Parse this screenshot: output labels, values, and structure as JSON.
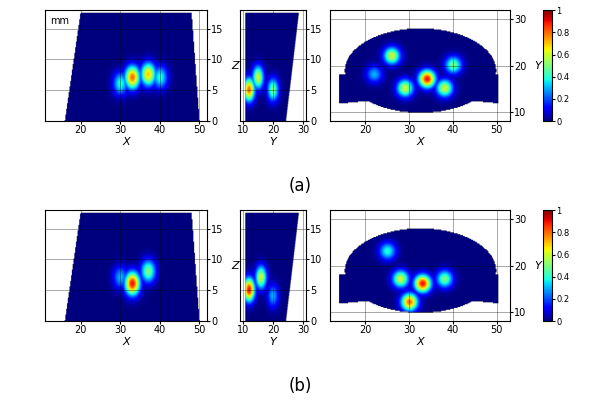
{
  "chart_data": [
    {
      "type": "heatmap",
      "panel_label": "(a)",
      "annotation": "mm",
      "xlabel": "X",
      "ylabel": "Z",
      "xlim": [
        11,
        52
      ],
      "ylim": [
        0,
        18
      ],
      "xticks": [
        20,
        30,
        40,
        50
      ],
      "yticks": [
        0,
        5,
        10,
        15
      ],
      "grid": true,
      "spots": [
        {
          "x": 30,
          "y": 6,
          "value": 0.4
        },
        {
          "x": 33,
          "y": 7,
          "value": 0.8
        },
        {
          "x": 37,
          "y": 7.5,
          "value": 0.7
        },
        {
          "x": 40,
          "y": 7,
          "value": 0.4
        }
      ]
    },
    {
      "type": "heatmap",
      "xlabel": "Y",
      "ylabel": "Z",
      "xlim": [
        9,
        31
      ],
      "ylim": [
        0,
        18
      ],
      "xticks": [
        10,
        20,
        30
      ],
      "yticks": [
        0,
        5,
        10,
        15
      ],
      "grid": true,
      "spots": [
        {
          "x": 12,
          "y": 5,
          "value": 0.8
        },
        {
          "x": 15,
          "y": 7,
          "value": 0.6
        },
        {
          "x": 20,
          "y": 5,
          "value": 0.5
        }
      ]
    },
    {
      "type": "heatmap",
      "xlabel": "X",
      "ylabel": "Y",
      "xlim": [
        12,
        53
      ],
      "ylim": [
        8,
        32
      ],
      "xticks": [
        20,
        30,
        40,
        50
      ],
      "yticks": [
        10,
        20,
        30
      ],
      "grid": true,
      "spots": [
        {
          "x": 26,
          "y": 22,
          "value": 0.6
        },
        {
          "x": 34,
          "y": 17,
          "value": 0.9
        },
        {
          "x": 38,
          "y": 15,
          "value": 0.6
        },
        {
          "x": 29,
          "y": 15,
          "value": 0.6
        },
        {
          "x": 40,
          "y": 20,
          "value": 0.5
        },
        {
          "x": 22,
          "y": 18,
          "value": 0.3
        }
      ],
      "colorbar": {
        "range": [
          0,
          1
        ],
        "ticks": [
          0,
          0.2,
          0.4,
          0.6,
          0.8,
          1
        ]
      }
    },
    {
      "type": "heatmap",
      "panel_label": "(b)",
      "xlabel": "X",
      "ylabel": "Z",
      "xlim": [
        11,
        52
      ],
      "ylim": [
        0,
        18
      ],
      "xticks": [
        20,
        30,
        40,
        50
      ],
      "yticks": [
        0,
        5,
        10,
        15
      ],
      "grid": true,
      "spots": [
        {
          "x": 33,
          "y": 6,
          "value": 0.9
        },
        {
          "x": 37,
          "y": 8,
          "value": 0.5
        },
        {
          "x": 30,
          "y": 7,
          "value": 0.3
        }
      ]
    },
    {
      "type": "heatmap",
      "xlabel": "Y",
      "ylabel": "Z",
      "xlim": [
        9,
        31
      ],
      "ylim": [
        0,
        18
      ],
      "xticks": [
        10,
        20,
        30
      ],
      "yticks": [
        0,
        5,
        10,
        15
      ],
      "grid": true,
      "spots": [
        {
          "x": 12,
          "y": 5,
          "value": 0.9
        },
        {
          "x": 16,
          "y": 7,
          "value": 0.6
        },
        {
          "x": 20,
          "y": 4,
          "value": 0.3
        }
      ]
    },
    {
      "type": "heatmap",
      "xlabel": "X",
      "ylabel": "Y",
      "xlim": [
        12,
        53
      ],
      "ylim": [
        8,
        32
      ],
      "xticks": [
        20,
        30,
        40,
        50
      ],
      "yticks": [
        10,
        20,
        30
      ],
      "grid": true,
      "spots": [
        {
          "x": 28,
          "y": 17,
          "value": 0.6
        },
        {
          "x": 33,
          "y": 16,
          "value": 0.9
        },
        {
          "x": 30,
          "y": 12,
          "value": 0.8
        },
        {
          "x": 38,
          "y": 17,
          "value": 0.5
        },
        {
          "x": 25,
          "y": 23,
          "value": 0.4
        }
      ],
      "colorbar": {
        "range": [
          0,
          1
        ],
        "ticks": [
          0,
          0.2,
          0.4,
          0.6,
          0.8,
          1
        ]
      }
    }
  ]
}
